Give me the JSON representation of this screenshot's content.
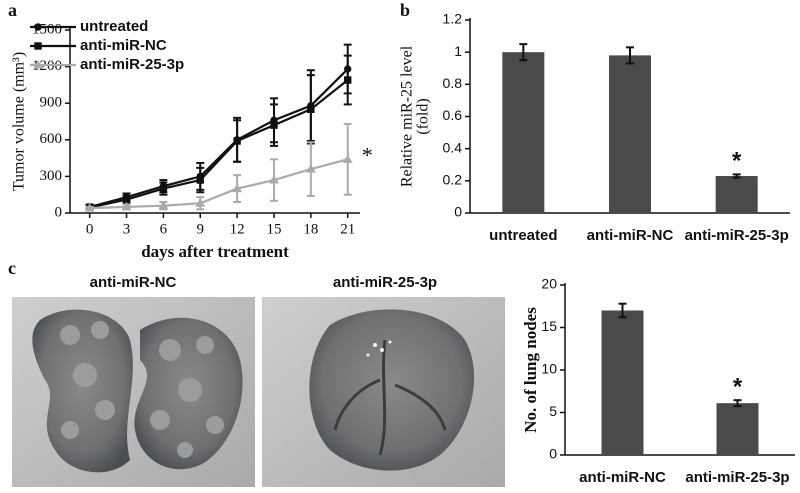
{
  "chart_data": [
    {
      "type": "line",
      "panel": "a",
      "xlabel": "days after treatment",
      "ylabel": "Tumor volume (mm³)",
      "x": [
        0,
        3,
        6,
        9,
        12,
        15,
        18,
        21
      ],
      "xlim": [
        -1.6,
        22
      ],
      "xticks": [
        0,
        3,
        6,
        9,
        12,
        15,
        18,
        21
      ],
      "ylim": [
        0,
        1500
      ],
      "yticks": [
        0,
        300,
        600,
        900,
        1200,
        1500
      ],
      "legend": "upper left",
      "series": [
        {
          "name": "untreated",
          "color": "#111111",
          "marker": "circle",
          "values": [
            50,
            130,
            220,
            300,
            600,
            760,
            880,
            1180
          ],
          "errors": [
            20,
            30,
            50,
            110,
            180,
            180,
            290,
            200
          ]
        },
        {
          "name": "anti-miR-NC",
          "color": "#111111",
          "marker": "square",
          "values": [
            45,
            110,
            200,
            270,
            590,
            720,
            850,
            1090
          ],
          "errors": [
            20,
            30,
            50,
            100,
            170,
            170,
            280,
            200
          ]
        },
        {
          "name": "anti-miR-25-3p",
          "color": "#aaaaaa",
          "marker": "triangle",
          "values": [
            40,
            50,
            60,
            80,
            200,
            270,
            360,
            440
          ],
          "errors": [
            10,
            20,
            30,
            50,
            110,
            170,
            220,
            290
          ]
        }
      ],
      "annotation": "*"
    },
    {
      "type": "bar",
      "panel": "b",
      "ylabel": [
        "Relative miR-25 level",
        "(fold)"
      ],
      "categories": [
        "untreated",
        "anti-miR-NC",
        "anti-miR-25-3p"
      ],
      "values": [
        1.0,
        0.98,
        0.23
      ],
      "errors": [
        0.05,
        0.05,
        0.01
      ],
      "color": "#4a4a4a",
      "ylim": [
        0,
        1.2
      ],
      "yticks": [
        0,
        0.2,
        0.4,
        0.6,
        0.8,
        1,
        1.2
      ],
      "annotation": "*"
    },
    {
      "type": "bar",
      "panel": "c",
      "ylabel": "No. of lung nodes",
      "categories": [
        "anti-miR-NC",
        "anti-miR-25-3p"
      ],
      "values": [
        17,
        6.1
      ],
      "errors": [
        0.8,
        0.35
      ],
      "color": "#4a4a4a",
      "ylim": [
        0,
        20
      ],
      "yticks": [
        0,
        5,
        10,
        15,
        20
      ],
      "annotation": "*"
    }
  ],
  "photos": [
    {
      "caption": "anti-miR-NC"
    },
    {
      "caption": "anti-miR-25-3p"
    }
  ]
}
